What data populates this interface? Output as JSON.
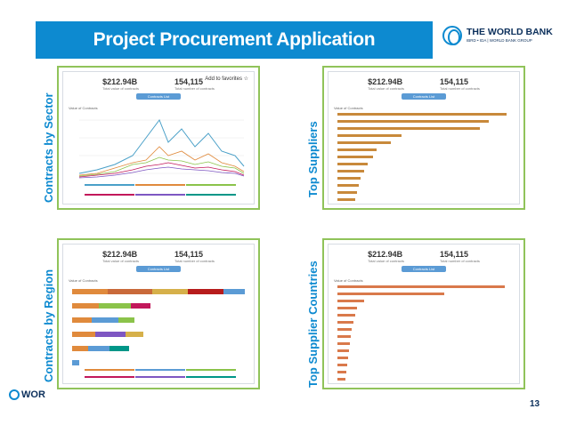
{
  "header": {
    "title": "Project Procurement Application"
  },
  "logo": {
    "name": "THE WORLD BANK",
    "sub": "IBRD • IDA | WORLD BANK GROUP"
  },
  "footer": {
    "page_number": "13",
    "logo_fragment": "WOR"
  },
  "stats": {
    "total_value": "$212.94B",
    "total_value_label": "Total value of contracts",
    "total_contracts": "154,115",
    "total_contracts_label": "Total number of contracts",
    "button": "Contracts List"
  },
  "panels": {
    "sector": {
      "label": "Contracts by Sector",
      "fav": "Add to favorites ☆",
      "axis_title": "Value of Contracts"
    },
    "suppliers": {
      "label": "Top Suppliers",
      "axis_title": "Value of Contracts"
    },
    "region": {
      "label": "Contracts by Region",
      "axis_title": "Value of Contracts"
    },
    "countries": {
      "label": "Top Supplier Countries",
      "axis_title": "Value of Contracts"
    }
  },
  "colors": {
    "accent": "#0d8ad0",
    "frame": "#90c35a",
    "navy": "#0b2f5b",
    "bar_supplier": "#c8893b",
    "bar_country": "#d9794b"
  }
}
